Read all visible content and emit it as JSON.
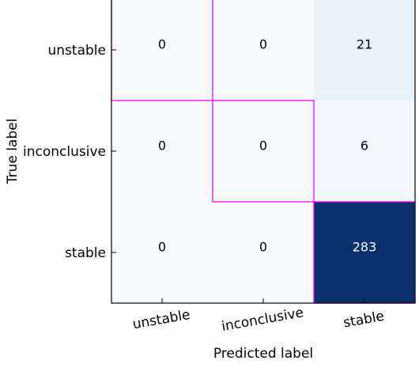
{
  "chart_data": {
    "type": "heatmap",
    "title": "",
    "xlabel": "Predicted label",
    "ylabel": "True label",
    "x_categories": [
      "unstable",
      "inconclusive",
      "stable"
    ],
    "y_categories": [
      "unstable",
      "inconclusive",
      "stable"
    ],
    "values": [
      [
        0,
        0,
        21
      ],
      [
        0,
        0,
        6
      ],
      [
        0,
        0,
        283
      ]
    ],
    "colormap": "Blues",
    "value_range": [
      0,
      283
    ],
    "diagonal_highlight_color": "#ff00ff",
    "grid": false
  }
}
